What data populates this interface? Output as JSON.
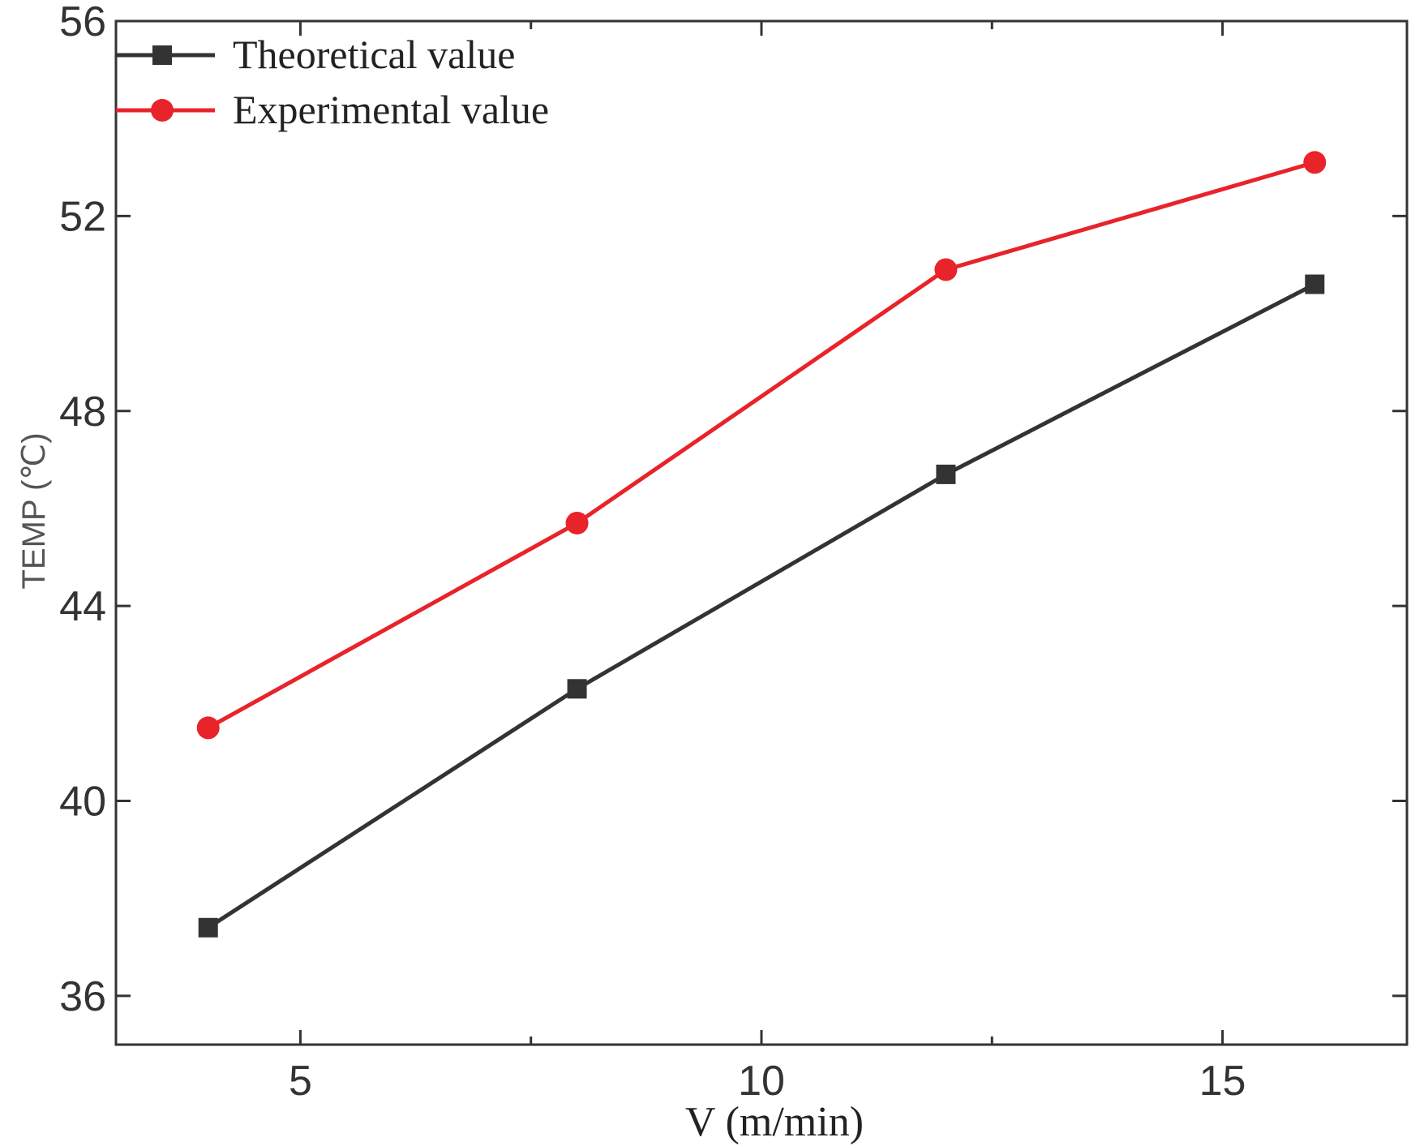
{
  "chart_data": {
    "type": "line",
    "xlabel": "V  (m/min)",
    "ylabel": "TEMP (℃)",
    "xlim": [
      3,
      17
    ],
    "ylim": [
      35,
      56
    ],
    "xticks": [
      5,
      10,
      15
    ],
    "yticks": [
      36,
      40,
      44,
      48,
      52,
      56
    ],
    "x_minor_ticks": [
      7.5,
      12.5
    ],
    "grid": false,
    "legend_position": "top-left",
    "series": [
      {
        "name": "Theoretical value",
        "color": "#333333",
        "marker": "square",
        "x": [
          4,
          8,
          12,
          16
        ],
        "y": [
          37.4,
          42.3,
          46.7,
          50.6
        ]
      },
      {
        "name": "Experimental value",
        "color": "#e8232a",
        "marker": "circle",
        "x": [
          4,
          8,
          12,
          16
        ],
        "y": [
          41.5,
          45.7,
          50.9,
          53.1
        ]
      }
    ]
  }
}
